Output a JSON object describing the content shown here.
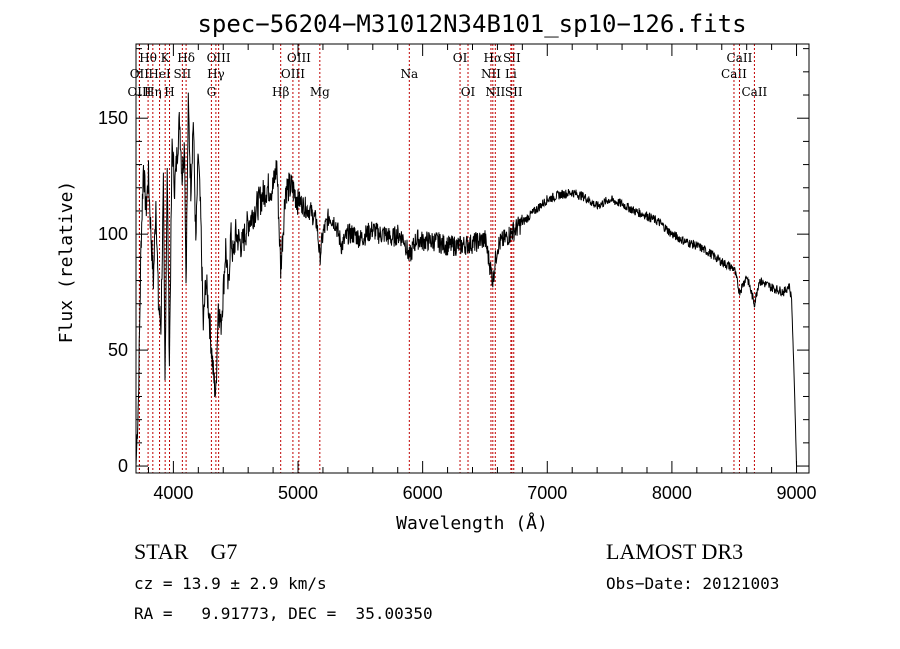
{
  "chart_data": {
    "type": "line",
    "title": "spec−56204−M31012N34B101_sp10−126.fits",
    "xlabel": "Wavelength (Å)",
    "ylabel": "Flux (relative)",
    "xlim": [
      3700,
      9100
    ],
    "ylim": [
      -3,
      182
    ],
    "xticks": [
      4000,
      5000,
      6000,
      7000,
      8000,
      9000
    ],
    "yticks": [
      0,
      50,
      100,
      150
    ],
    "series": [
      {
        "x": [
          3700,
          3720,
          3740,
          3760,
          3780,
          3800,
          3820,
          3840,
          3860,
          3880,
          3900,
          3920,
          3933,
          3950,
          3968,
          3990,
          4010,
          4030,
          4050,
          4070,
          4090,
          4101,
          4120,
          4140,
          4160,
          4180,
          4200,
          4220,
          4240,
          4260,
          4280,
          4300,
          4320,
          4340,
          4360,
          4380,
          4400,
          4420,
          4440,
          4460,
          4480,
          4500,
          4550,
          4600,
          4650,
          4700,
          4750,
          4800,
          4830,
          4861,
          4900,
          4950,
          5000,
          5050,
          5100,
          5150,
          5175,
          5200,
          5250,
          5300,
          5350,
          5400,
          5450,
          5500,
          5550,
          5600,
          5650,
          5700,
          5750,
          5800,
          5850,
          5893,
          5950,
          6000,
          6100,
          6200,
          6300,
          6400,
          6500,
          6563,
          6600,
          6700,
          6800,
          6900,
          7000,
          7100,
          7200,
          7300,
          7400,
          7500,
          7600,
          7700,
          7800,
          7900,
          8000,
          8100,
          8200,
          8300,
          8400,
          8500,
          8542,
          8600,
          8662,
          8700,
          8800,
          8900,
          8940,
          8960,
          8980,
          9000
        ],
        "y": [
          0,
          30,
          95,
          130,
          110,
          125,
          100,
          80,
          115,
          70,
          60,
          120,
          35,
          130,
          45,
          140,
          120,
          135,
          150,
          125,
          140,
          80,
          155,
          120,
          150,
          95,
          135,
          105,
          60,
          80,
          70,
          55,
          40,
          30,
          70,
          60,
          75,
          95,
          75,
          100,
          90,
          100,
          95,
          105,
          110,
          115,
          120,
          120,
          130,
          85,
          120,
          120,
          115,
          112,
          110,
          105,
          90,
          100,
          108,
          105,
          95,
          100,
          100,
          98,
          100,
          102,
          100,
          100,
          98,
          100,
          98,
          90,
          98,
          97,
          97,
          95,
          95,
          96,
          98,
          80,
          95,
          100,
          105,
          110,
          115,
          117,
          118,
          116,
          112,
          115,
          113,
          110,
          108,
          105,
          100,
          97,
          95,
          92,
          88,
          85,
          75,
          82,
          70,
          80,
          77,
          75,
          78,
          72,
          40,
          0
        ]
      }
    ],
    "spectral_lines": [
      {
        "label": "Hθ",
        "wavelength": 3797,
        "row": 1
      },
      {
        "label": "OII",
        "wavelength": 3727,
        "row": 2
      },
      {
        "label": "OIII",
        "wavelength": 3728,
        "row": 3
      },
      {
        "label": "Hη",
        "wavelength": 3835,
        "row": 3
      },
      {
        "label": "HeI",
        "wavelength": 3889,
        "row": 2
      },
      {
        "label": "K",
        "wavelength": 3934,
        "row": 1
      },
      {
        "label": "H",
        "wavelength": 3969,
        "row": 3
      },
      {
        "label": "SII",
        "wavelength": 4072,
        "row": 2
      },
      {
        "label": "Hδ",
        "wavelength": 4102,
        "row": 1
      },
      {
        "label": "OIII",
        "wavelength": 4363,
        "row": 1
      },
      {
        "label": "Hγ",
        "wavelength": 4341,
        "row": 2
      },
      {
        "label": "G",
        "wavelength": 4305,
        "row": 3
      },
      {
        "label": "Hβ",
        "wavelength": 4861,
        "row": 3
      },
      {
        "label": "OIII",
        "wavelength": 4959,
        "row": 2
      },
      {
        "label": "OIII",
        "wavelength": 5007,
        "row": 1
      },
      {
        "label": "Mg",
        "wavelength": 5175,
        "row": 3
      },
      {
        "label": "Na",
        "wavelength": 5893,
        "row": 2
      },
      {
        "label": "OI",
        "wavelength": 6300,
        "row": 1
      },
      {
        "label": "OI",
        "wavelength": 6364,
        "row": 3
      },
      {
        "label": "NII",
        "wavelength": 6548,
        "row": 2
      },
      {
        "label": "Hα",
        "wavelength": 6563,
        "row": 1
      },
      {
        "label": "NII",
        "wavelength": 6583,
        "row": 3
      },
      {
        "label": "Li",
        "wavelength": 6708,
        "row": 2
      },
      {
        "label": "SII",
        "wavelength": 6716,
        "row": 1
      },
      {
        "label": "SII",
        "wavelength": 6731,
        "row": 3
      },
      {
        "label": "CaII",
        "wavelength": 8498,
        "row": 2
      },
      {
        "label": "CaII",
        "wavelength": 8542,
        "row": 1
      },
      {
        "label": "CaII",
        "wavelength": 8662,
        "row": 3
      }
    ]
  },
  "info": {
    "class": "STAR",
    "subclass": "G7",
    "survey": "LAMOST DR3",
    "cz": "cz = 13.9 ± 2.9 km/s",
    "obs_date": "Obs−Date: 20121003",
    "radec": "RA =   9.91773, DEC =  35.00350"
  }
}
